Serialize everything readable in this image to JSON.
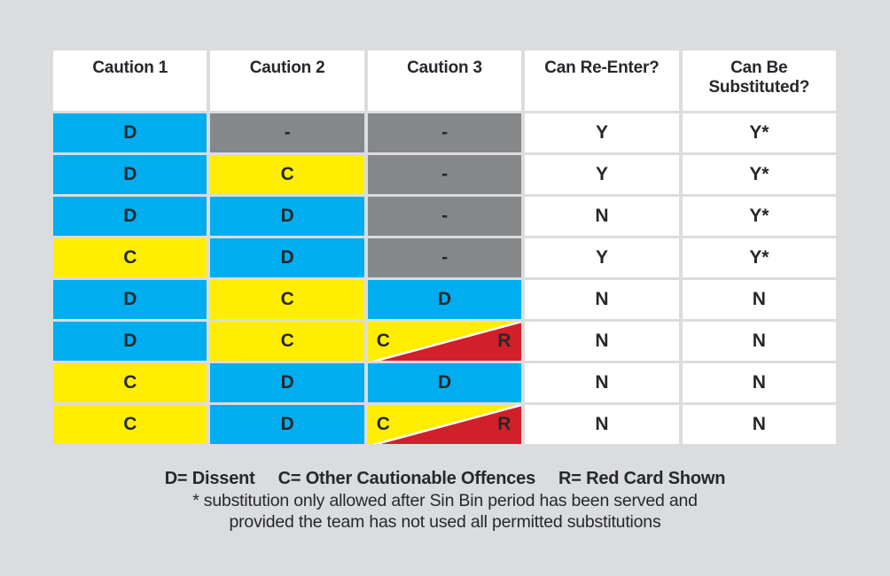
{
  "page": {
    "background": "#DBDCDE"
  },
  "colors": {
    "blue": "#00AEEF",
    "yellow": "#FFEE00",
    "red": "#D1202A",
    "gray": "#858789",
    "cell_white": "#FFFFFF",
    "text": "#26282B",
    "divider_white": "#FFFFFF"
  },
  "table": {
    "headers": [
      "Caution 1",
      "Caution 2",
      "Caution 3",
      "Can Re-Enter?",
      "Can Be Substituted?"
    ],
    "rows": [
      {
        "cells": [
          {
            "text": "D",
            "type": "blue"
          },
          {
            "text": "-",
            "type": "gray"
          },
          {
            "text": "-",
            "type": "gray"
          },
          {
            "text": "Y",
            "type": "white"
          },
          {
            "text": "Y*",
            "type": "white"
          }
        ]
      },
      {
        "cells": [
          {
            "text": "D",
            "type": "blue"
          },
          {
            "text": "C",
            "type": "yellow"
          },
          {
            "text": "-",
            "type": "gray"
          },
          {
            "text": "Y",
            "type": "white"
          },
          {
            "text": "Y*",
            "type": "white"
          }
        ]
      },
      {
        "cells": [
          {
            "text": "D",
            "type": "blue"
          },
          {
            "text": "D",
            "type": "blue"
          },
          {
            "text": "-",
            "type": "gray"
          },
          {
            "text": "N",
            "type": "white"
          },
          {
            "text": "Y*",
            "type": "white"
          }
        ]
      },
      {
        "cells": [
          {
            "text": "C",
            "type": "yellow"
          },
          {
            "text": "D",
            "type": "blue"
          },
          {
            "text": "-",
            "type": "gray"
          },
          {
            "text": "Y",
            "type": "white"
          },
          {
            "text": "Y*",
            "type": "white"
          }
        ]
      },
      {
        "cells": [
          {
            "text": "D",
            "type": "blue"
          },
          {
            "text": "C",
            "type": "yellow"
          },
          {
            "text": "D",
            "type": "blue"
          },
          {
            "text": "N",
            "type": "white"
          },
          {
            "text": "N",
            "type": "white"
          }
        ]
      },
      {
        "cells": [
          {
            "text": "D",
            "type": "blue"
          },
          {
            "text": "C",
            "type": "yellow"
          },
          {
            "type": "split",
            "left": "C",
            "right": "R"
          },
          {
            "text": "N",
            "type": "white"
          },
          {
            "text": "N",
            "type": "white"
          }
        ]
      },
      {
        "cells": [
          {
            "text": "C",
            "type": "yellow"
          },
          {
            "text": "D",
            "type": "blue"
          },
          {
            "text": "D",
            "type": "blue"
          },
          {
            "text": "N",
            "type": "white"
          },
          {
            "text": "N",
            "type": "white"
          }
        ]
      },
      {
        "cells": [
          {
            "text": "C",
            "type": "yellow"
          },
          {
            "text": "D",
            "type": "blue"
          },
          {
            "type": "split",
            "left": "C",
            "right": "R"
          },
          {
            "text": "N",
            "type": "white"
          },
          {
            "text": "N",
            "type": "white"
          }
        ]
      }
    ]
  },
  "legend": {
    "parts": [
      "D= Dissent",
      "C= Other Cautionable Offences",
      "R= Red Card Shown"
    ],
    "footnote_line1": "* substitution only allowed after Sin Bin period has been served and",
    "footnote_line2": "provided the team has not used all permitted substitutions"
  }
}
